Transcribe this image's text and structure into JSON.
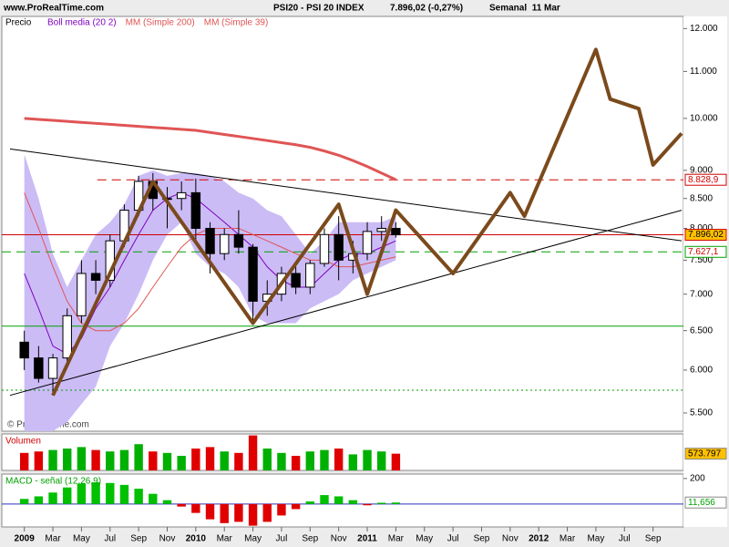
{
  "header": {
    "site": "www.ProRealTime.com",
    "title": "PSI20 - PSI 20 INDEX",
    "quote": "7.896,02 (-0,27%)",
    "period": "Semanal  11 Mar"
  },
  "chart_data": [
    {
      "type": "candlestick",
      "label": "Precio",
      "watermark": "© ProRealTime.com",
      "log_scale": true,
      "x": [
        "2009-01",
        "2009-02",
        "2009-03",
        "2009-04",
        "2009-05",
        "2009-06",
        "2009-07",
        "2009-08",
        "2009-09",
        "2009-10",
        "2009-11",
        "2009-12",
        "2010-01",
        "2010-02",
        "2010-03",
        "2010-04",
        "2010-05",
        "2010-06",
        "2010-07",
        "2010-08",
        "2010-09",
        "2010-10",
        "2010-11",
        "2010-12",
        "2011-01",
        "2011-02",
        "2011-03"
      ],
      "open": [
        6350,
        6150,
        5900,
        6150,
        6700,
        7300,
        7200,
        7800,
        8300,
        8800,
        8500,
        8500,
        8600,
        8000,
        7600,
        7900,
        7700,
        6900,
        7000,
        7300,
        7100,
        7450,
        7900,
        7500,
        7600,
        7950,
        8000
      ],
      "high": [
        6500,
        6300,
        6200,
        6800,
        7500,
        7500,
        7900,
        8400,
        8900,
        8950,
        8700,
        8800,
        8850,
        8100,
        8000,
        8300,
        7750,
        7200,
        7400,
        7400,
        7500,
        8000,
        8200,
        7800,
        8100,
        8200,
        8100
      ],
      "low": [
        6000,
        5850,
        5700,
        6100,
        6600,
        7000,
        7100,
        7700,
        8200,
        8300,
        8000,
        8300,
        7800,
        7300,
        7500,
        7600,
        6600,
        6700,
        6900,
        7000,
        7000,
        7400,
        7200,
        7300,
        7500,
        7800,
        7850
      ],
      "close": [
        6150,
        5900,
        6150,
        6700,
        7300,
        7200,
        7800,
        8300,
        8800,
        8500,
        8500,
        8600,
        8000,
        7600,
        7900,
        7700,
        6900,
        7000,
        7300,
        7100,
        7450,
        7900,
        7500,
        7600,
        7950,
        8000,
        7896.02
      ],
      "up_color": "#ffffff",
      "down_color": "#000000",
      "xlim": [
        "2008-12",
        "2012-11"
      ],
      "xticks": [
        {
          "value": "2009-01",
          "label": "2009"
        },
        {
          "value": "2009-03",
          "label": "Mar"
        },
        {
          "value": "2009-05",
          "label": "May"
        },
        {
          "value": "2009-07",
          "label": "Jul"
        },
        {
          "value": "2009-09",
          "label": "Sep"
        },
        {
          "value": "2009-11",
          "label": "Nov"
        },
        {
          "value": "2010-01",
          "label": "2010"
        },
        {
          "value": "2010-03",
          "label": "Mar"
        },
        {
          "value": "2010-05",
          "label": "May"
        },
        {
          "value": "2010-07",
          "label": "Jul"
        },
        {
          "value": "2010-09",
          "label": "Sep"
        },
        {
          "value": "2010-11",
          "label": "Nov"
        },
        {
          "value": "2011-01",
          "label": "2011"
        },
        {
          "value": "2011-03",
          "label": "Mar"
        },
        {
          "value": "2011-05",
          "label": "May"
        },
        {
          "value": "2011-07",
          "label": "Jul"
        },
        {
          "value": "2011-09",
          "label": "Sep"
        },
        {
          "value": "2011-11",
          "label": "Nov"
        },
        {
          "value": "2012-01",
          "label": "2012"
        },
        {
          "value": "2012-03",
          "label": "Mar"
        },
        {
          "value": "2012-05",
          "label": "May"
        },
        {
          "value": "2012-07",
          "label": "Jul"
        },
        {
          "value": "2012-09",
          "label": "Sep"
        }
      ],
      "ylim": [
        5300,
        12300
      ],
      "yticks": [
        {
          "value": 12000,
          "label": "12.000"
        },
        {
          "value": 11000,
          "label": "11.000"
        },
        {
          "value": 10000,
          "label": "10.000"
        },
        {
          "value": 9000,
          "label": "9.000"
        },
        {
          "value": 8500,
          "label": "8.500"
        },
        {
          "value": 8000,
          "label": "8.000"
        },
        {
          "value": 7500,
          "label": "7.500"
        },
        {
          "value": 7000,
          "label": "7.000"
        },
        {
          "value": 6500,
          "label": "6.500"
        },
        {
          "value": 6000,
          "label": "6.000"
        },
        {
          "value": 5500,
          "label": "5.500"
        }
      ],
      "series": [
        {
          "name": "Boll media (20 2)",
          "color": "#8000c0",
          "band_color": "#cbbcf6",
          "values": [
            7300,
            6800,
            6300,
            6200,
            6400,
            6800,
            7100,
            7500,
            7900,
            8300,
            8500,
            8600,
            8500,
            8300,
            8100,
            7900,
            7700,
            7400,
            7200,
            7100,
            7100,
            7300,
            7500,
            7600,
            7600,
            7700,
            7800
          ],
          "upper": [
            9300,
            8500,
            7600,
            7100,
            7500,
            7900,
            8100,
            8400,
            8900,
            9000,
            8900,
            8950,
            8950,
            8900,
            8800,
            8600,
            8500,
            8300,
            8200,
            7900,
            7600,
            7800,
            8100,
            8100,
            8100,
            8100,
            8200
          ],
          "lower": [
            5300,
            5300,
            5300,
            5400,
            5600,
            5800,
            6300,
            6600,
            7000,
            7500,
            7900,
            8100,
            7600,
            7400,
            7300,
            7100,
            6700,
            6600,
            6600,
            6600,
            6800,
            6900,
            7000,
            7200,
            7300,
            7400,
            7500
          ]
        },
        {
          "name": "MM (Simple 200)",
          "color": "#e05555",
          "width": 3,
          "values": [
            10000,
            9980,
            9960,
            9940,
            9920,
            9900,
            9880,
            9860,
            9840,
            9820,
            9800,
            9780,
            9760,
            9720,
            9680,
            9640,
            9600,
            9560,
            9520,
            9480,
            9430,
            9360,
            9280,
            9180,
            9070,
            8950,
            8830
          ]
        },
        {
          "name": "MM (Simple 39)",
          "color": "#e05555",
          "width": 1,
          "values": [
            8600,
            8000,
            7400,
            6900,
            6600,
            6500,
            6500,
            6600,
            6800,
            7100,
            7400,
            7700,
            7900,
            8000,
            8000,
            8000,
            7900,
            7800,
            7700,
            7600,
            7500,
            7500,
            7400,
            7400,
            7450,
            7500,
            7550
          ]
        }
      ],
      "hlines": [
        {
          "value": 8828.9,
          "label": "8.828,9",
          "color": "#d00000",
          "dash": "10,6",
          "box": "#ffffff",
          "text_color": "#d00000"
        },
        {
          "value": 7896.02,
          "label": "7.896,02",
          "color": "#d00000",
          "box": "#ffc000",
          "text_color": "#000000"
        },
        {
          "value": 7627.1,
          "label": "7.627,1",
          "color": "#00a000",
          "dash": "10,6",
          "box": "#ffffff",
          "text_color": "#d00000"
        },
        {
          "value": 6560,
          "color": "#00a000"
        },
        {
          "value": 5760,
          "color": "#00a000",
          "dash": "2,3"
        }
      ],
      "trendlines": [
        {
          "x": [
            "2008-12",
            "2012-11"
          ],
          "values": [
            5700,
            8300
          ],
          "color": "#000000"
        },
        {
          "x": [
            "2008-12",
            "2012-11"
          ],
          "values": [
            9400,
            7800
          ],
          "color": "#000000"
        }
      ],
      "projection": {
        "color": "#7b4a1c",
        "x": [
          "2009-03",
          "2009-10",
          "2010-05",
          "2010-11",
          "2011-01",
          "2011-03",
          "2011-07",
          "2011-11",
          "2011-12",
          "2012-05",
          "2012-06",
          "2012-08",
          "2012-09",
          "2012-11"
        ],
        "values": [
          5700,
          8800,
          6600,
          8400,
          7000,
          8300,
          7300,
          8600,
          8200,
          11500,
          10400,
          10200,
          9100,
          9700
        ]
      }
    },
    {
      "type": "bar",
      "label": "Volumen",
      "up_color": "#00b000",
      "down_color": "#e00000",
      "label_color": "#d00000",
      "values": [
        600000,
        650000,
        700000,
        750000,
        800000,
        700000,
        650000,
        700000,
        900000,
        650000,
        600000,
        500000,
        750000,
        800000,
        650000,
        600000,
        1200000,
        750000,
        600000,
        500000,
        650000,
        700000,
        750000,
        550000,
        700000,
        650000,
        573797
      ],
      "value_labels": [
        null,
        null,
        null,
        null,
        null,
        null,
        null,
        null,
        null,
        null,
        null,
        null,
        null,
        null,
        null,
        null,
        null,
        null,
        null,
        null,
        null,
        null,
        null,
        null,
        null,
        null,
        "573.797"
      ],
      "box": "#ffc000",
      "ylim": [
        0,
        1250000
      ]
    },
    {
      "type": "bar",
      "label": "MACD - señal (12,26,9)",
      "up_color": "#00c000",
      "down_color": "#e00000",
      "label_color": "#00a000",
      "zero_color": "#3030c0",
      "values": [
        40,
        60,
        90,
        130,
        160,
        170,
        165,
        150,
        120,
        80,
        30,
        -20,
        -70,
        -120,
        -150,
        -140,
        -170,
        -140,
        -90,
        -40,
        20,
        70,
        60,
        30,
        -10,
        10,
        11.656
      ],
      "value_labels": [
        null,
        null,
        null,
        null,
        null,
        null,
        null,
        null,
        null,
        null,
        null,
        null,
        null,
        null,
        null,
        null,
        null,
        null,
        null,
        null,
        null,
        null,
        null,
        null,
        null,
        null,
        "11,656"
      ],
      "box": "#ffffff",
      "ylim": [
        -180,
        235
      ],
      "yticks": [
        200
      ]
    }
  ]
}
